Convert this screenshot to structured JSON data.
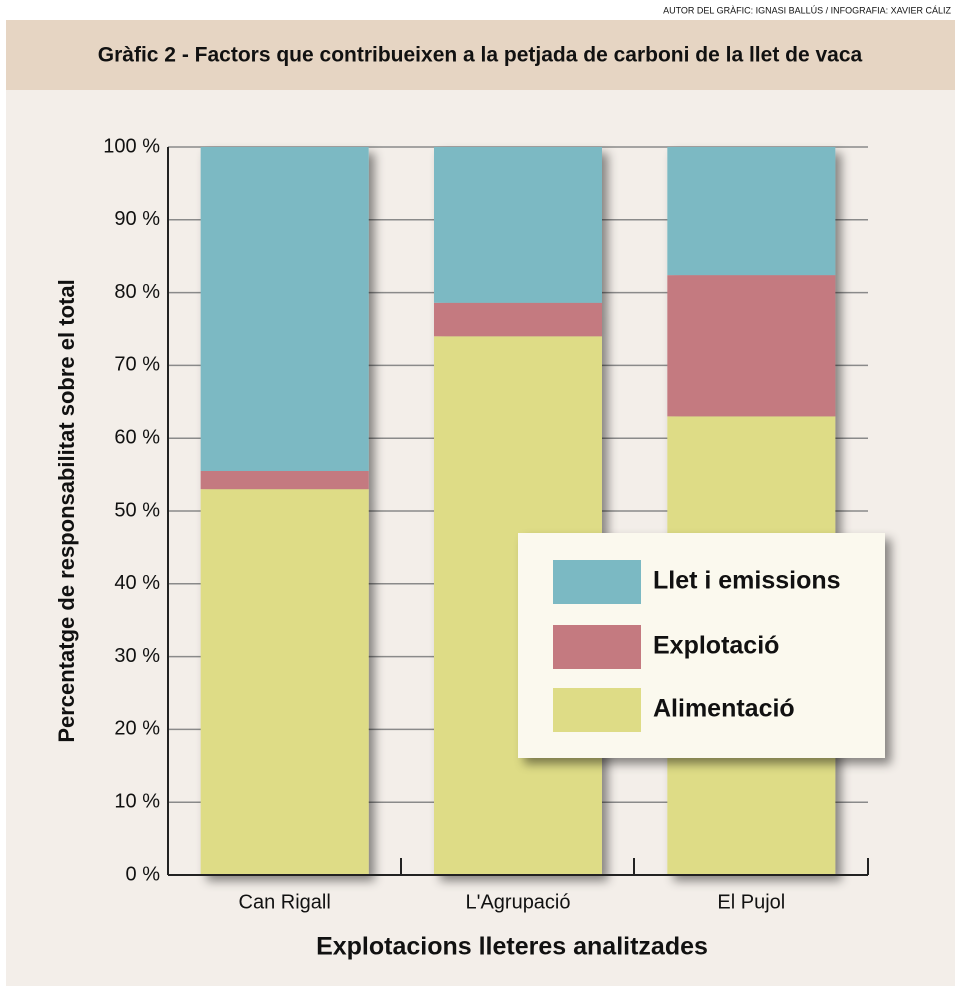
{
  "credit": "AUTOR DEL GRÀFIC: IGNASI BALLÚS / INFOGRAFIA: XAVIER CÁLIZ",
  "chart_data": {
    "type": "stacked_bar",
    "title": "Gràfic 2 - Factors que contribueixen a la petjada de carboni de la llet de vaca",
    "y_label": "Percentatge de responsabilitat sobre el total",
    "x_label": "Explotacions lleteres analitzades",
    "categories": [
      "Can Rigall",
      "L'Agrupació",
      "El Pujol"
    ],
    "series": [
      {
        "name": "Alimentació",
        "color": "#dedc86",
        "values": [
          53,
          74,
          63
        ]
      },
      {
        "name": "Explotació",
        "color": "#c47a80",
        "values": [
          2.5,
          4.6,
          19.4
        ]
      },
      {
        "name": "Llet i emissions",
        "color": "#7bb9c3",
        "values": [
          44.5,
          21.4,
          17.6
        ]
      }
    ],
    "ylim": [
      0,
      100
    ],
    "yticks": [
      {
        "value": 0,
        "label": "0 %"
      },
      {
        "value": 10,
        "label": "10 %"
      },
      {
        "value": 20,
        "label": "20 %"
      },
      {
        "value": 30,
        "label": "30 %"
      },
      {
        "value": 40,
        "label": "40 %"
      },
      {
        "value": 50,
        "label": "50 %"
      },
      {
        "value": 60,
        "label": "60 %"
      },
      {
        "value": 70,
        "label": "70 %"
      },
      {
        "value": 80,
        "label": "80 %"
      },
      {
        "value": 90,
        "label": "90 %"
      },
      {
        "value": 100,
        "label": "100 %"
      }
    ],
    "grid": true
  }
}
